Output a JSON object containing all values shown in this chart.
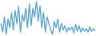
{
  "values": [
    30,
    10,
    45,
    5,
    40,
    20,
    55,
    15,
    60,
    30,
    70,
    10,
    50,
    35,
    65,
    20,
    75,
    25,
    65,
    45,
    80,
    35,
    70,
    20,
    55,
    10,
    45,
    30,
    15,
    5,
    35,
    20,
    40,
    10,
    30,
    15,
    25,
    10,
    20,
    15,
    22,
    8,
    28,
    12,
    25,
    10,
    20,
    12,
    18,
    10,
    22,
    12,
    18,
    14
  ],
  "line_color": "#4d9fd6",
  "background_color": "#ffffff",
  "linewidth": 0.9
}
